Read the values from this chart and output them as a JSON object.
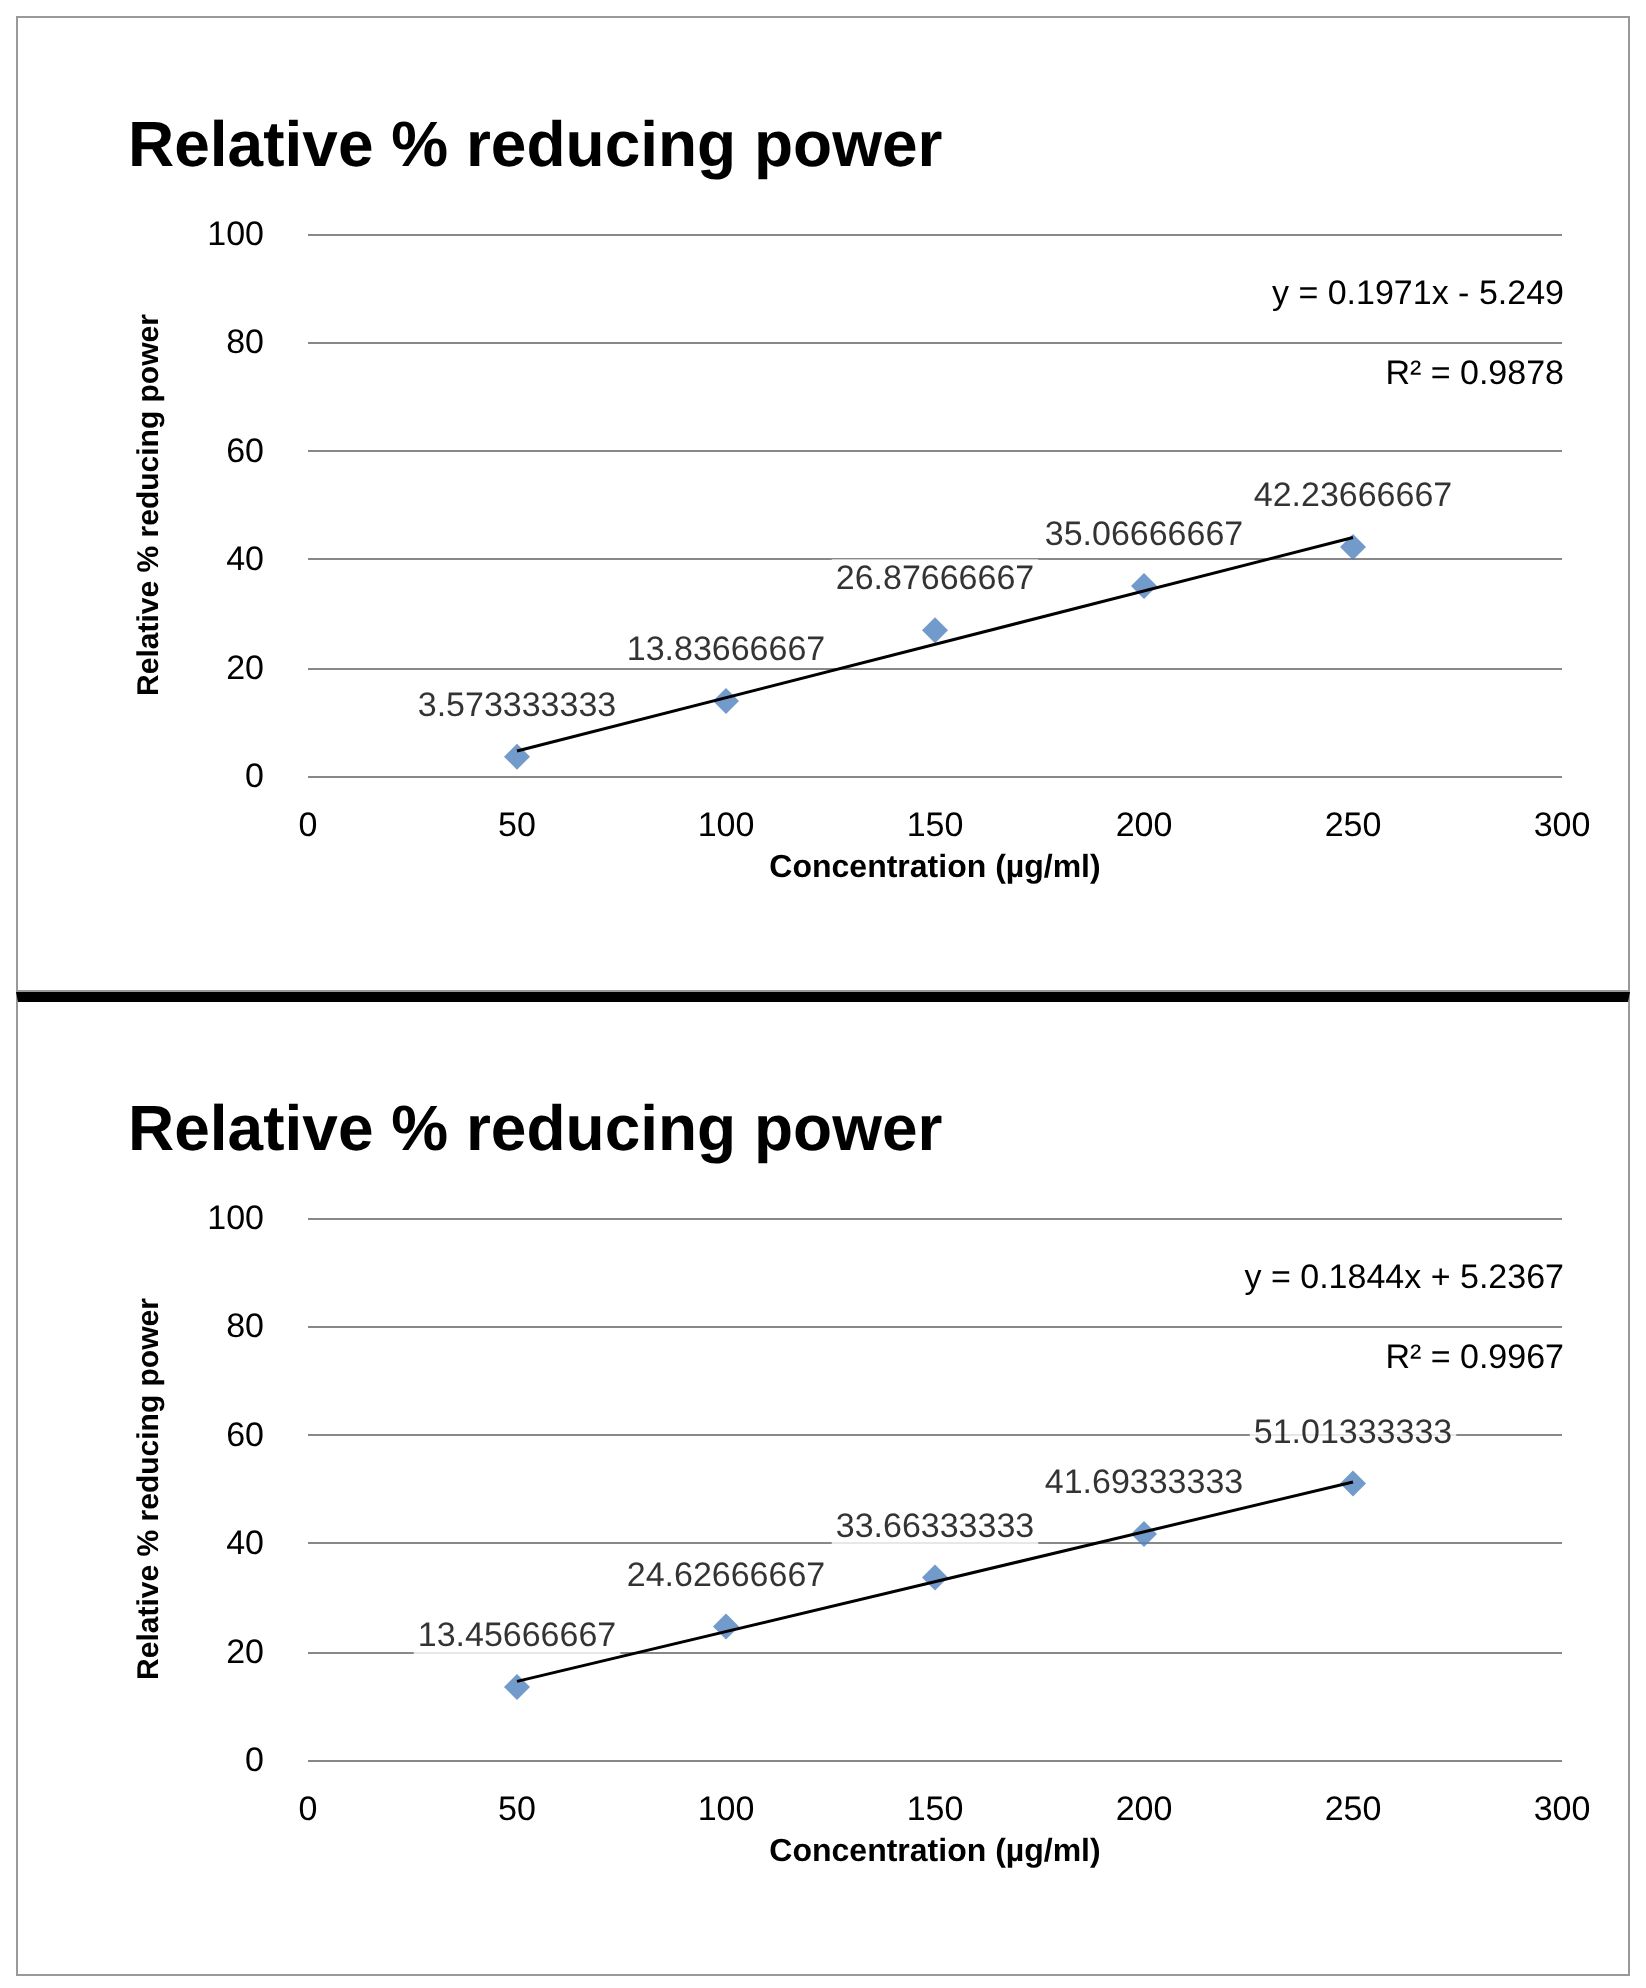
{
  "chart_data": [
    {
      "type": "scatter",
      "title": "Relative % reducing power",
      "xlabel": "Concentration (µg/ml)",
      "ylabel": "Relative % reducing power",
      "annotations": [
        "y = 0.1971x - 5.249",
        "R² = 0.9878"
      ],
      "xlim": [
        0,
        300
      ],
      "xticks": [
        0,
        50,
        100,
        150,
        200,
        250,
        300
      ],
      "ylim": [
        0,
        100
      ],
      "yticks": [
        0,
        20,
        40,
        60,
        80,
        100
      ],
      "grid": "y",
      "marker": "diamond",
      "series": [
        {
          "color": "#4f81bd",
          "x": [
            50,
            100,
            150,
            200,
            250
          ],
          "values": [
            3.573333333,
            13.83666667,
            26.87666667,
            35.06666667,
            42.23666667
          ],
          "value_labels": [
            "3.573333333",
            "13.83666667",
            "26.87666667",
            "35.06666667",
            "42.23666667"
          ]
        },
        {
          "type": "line",
          "marker": "none",
          "color": "#000000",
          "x": [
            50,
            250
          ],
          "values": [
            4.6,
            44.0
          ]
        }
      ]
    },
    {
      "type": "scatter",
      "title": "Relative % reducing power",
      "xlabel": "Concentration (µg/ml)",
      "ylabel": "Relative % reducing power",
      "annotations": [
        "y = 0.1844x + 5.2367",
        "R² = 0.9967"
      ],
      "xlim": [
        0,
        300
      ],
      "xticks": [
        0,
        50,
        100,
        150,
        200,
        250,
        300
      ],
      "ylim": [
        0,
        100
      ],
      "yticks": [
        0,
        20,
        40,
        60,
        80,
        100
      ],
      "grid": "y",
      "marker": "diamond",
      "series": [
        {
          "color": "#4f81bd",
          "x": [
            50,
            100,
            150,
            200,
            250
          ],
          "values": [
            13.45666667,
            24.62666667,
            33.66333333,
            41.69333333,
            51.01333333
          ],
          "value_labels": [
            "13.45666667",
            "24.62666667",
            "33.66333333",
            "41.69333333",
            "51.01333333"
          ]
        },
        {
          "type": "line",
          "marker": "none",
          "color": "#000000",
          "x": [
            50,
            250
          ],
          "values": [
            14.5,
            51.3
          ]
        }
      ]
    }
  ]
}
